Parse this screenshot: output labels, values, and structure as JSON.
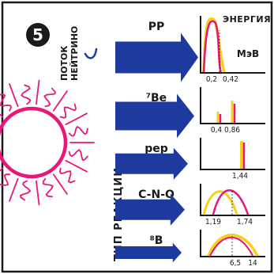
{
  "figure": {
    "number": "5",
    "flux_label": [
      "ПОТОК",
      "НЕЙТРИНО"
    ],
    "reaction_type_label": "ТИП РЕАКЦИИ",
    "energy_label": "ЭНЕРГИЯ",
    "unit_label": "МэВ"
  },
  "colors": {
    "arrow": "#1f3a9e",
    "sun": "#e8177a",
    "curve_magenta": "#e8177a",
    "curve_yellow": "#f2d21c",
    "frame": "#1a1a1a"
  },
  "reactions": [
    {
      "name": "PP",
      "ticks": [
        "0,2",
        "0,42"
      ],
      "spectrum": "continuous-low"
    },
    {
      "name": "⁷Be",
      "ticks": [
        "0,4",
        "0,86"
      ],
      "spectrum": "lines"
    },
    {
      "name": "pep",
      "ticks": [
        "1,44"
      ],
      "spectrum": "line"
    },
    {
      "name": "C-N-O",
      "ticks": [
        "1,19",
        "1,74"
      ],
      "spectrum": "double-continuous"
    },
    {
      "name": "⁸B",
      "ticks": [
        "6,5",
        "14"
      ],
      "spectrum": "continuous-broad"
    }
  ]
}
